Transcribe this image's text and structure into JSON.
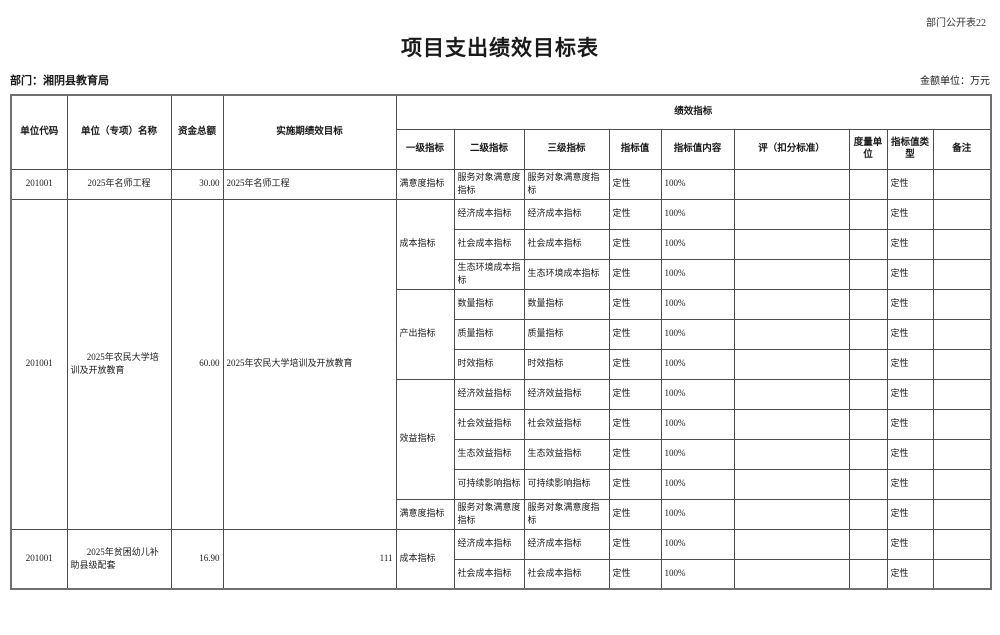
{
  "page": {
    "corner_label": "部门公开表22",
    "title": "项目支出绩效目标表",
    "department_label": "部门：湘阴县教育局",
    "amount_unit_label": "金额单位：万元"
  },
  "table": {
    "headers": {
      "unit_code": "单位代码",
      "unit_name": "单位（专项）名称",
      "total_funds": "资金总额",
      "impl_goal": "实施期绩效目标",
      "perf_indicators": "绩效指标",
      "l1": "一级指标",
      "l2": "二级指标",
      "l3": "三级指标",
      "value": "指标值",
      "value_content": "指标值内容",
      "eval": "评（扣分标准）",
      "measure_unit": "度量单位",
      "value_type": "指标值类型",
      "note": "备注"
    },
    "groups": [
      {
        "code": "201001",
        "name": "2025年名师工程",
        "amount": "30.00",
        "goal": "2025年名师工程",
        "rows": [
          {
            "l1": "满意度指标",
            "l2": "服务对象满意度指标",
            "l3": "服务对象满意度指标",
            "value": "定性",
            "content": "100%",
            "eval": "",
            "unit": "",
            "type": "定性",
            "note": ""
          }
        ]
      },
      {
        "code": "201001",
        "name": "2025年农民大学培训及开放教育",
        "amount": "60.00",
        "goal": "2025年农民大学培训及开放教育",
        "rows": [
          {
            "l1": "成本指标",
            "l2": "经济成本指标",
            "l3": "经济成本指标",
            "value": "定性",
            "content": "100%",
            "eval": "",
            "unit": "",
            "type": "定性",
            "note": ""
          },
          {
            "l2": "社会成本指标",
            "l3": "社会成本指标",
            "value": "定性",
            "content": "100%",
            "eval": "",
            "unit": "",
            "type": "定性",
            "note": ""
          },
          {
            "l2": "生态环境成本指标",
            "l3": "生态环境成本指标",
            "value": "定性",
            "content": "100%",
            "eval": "",
            "unit": "",
            "type": "定性",
            "note": ""
          },
          {
            "l1": "产出指标",
            "l2": "数量指标",
            "l3": "数量指标",
            "value": "定性",
            "content": "100%",
            "eval": "",
            "unit": "",
            "type": "定性",
            "note": ""
          },
          {
            "l2": "质量指标",
            "l3": "质量指标",
            "value": "定性",
            "content": "100%",
            "eval": "",
            "unit": "",
            "type": "定性",
            "note": ""
          },
          {
            "l2": "时效指标",
            "l3": "时效指标",
            "value": "定性",
            "content": "100%",
            "eval": "",
            "unit": "",
            "type": "定性",
            "note": ""
          },
          {
            "l1": "效益指标",
            "l2": "经济效益指标",
            "l3": "经济效益指标",
            "value": "定性",
            "content": "100%",
            "eval": "",
            "unit": "",
            "type": "定性",
            "note": ""
          },
          {
            "l2": "社会效益指标",
            "l3": "社会效益指标",
            "value": "定性",
            "content": "100%",
            "eval": "",
            "unit": "",
            "type": "定性",
            "note": ""
          },
          {
            "l2": "生态效益指标",
            "l3": "生态效益指标",
            "value": "定性",
            "content": "100%",
            "eval": "",
            "unit": "",
            "type": "定性",
            "note": ""
          },
          {
            "l2": "可持续影响指标",
            "l3": "可持续影响指标",
            "value": "定性",
            "content": "100%",
            "eval": "",
            "unit": "",
            "type": "定性",
            "note": ""
          },
          {
            "l1": "满意度指标",
            "l2": "服务对象满意度指标",
            "l3": "服务对象满意度指标",
            "value": "定性",
            "content": "100%",
            "eval": "",
            "unit": "",
            "type": "定性",
            "note": ""
          }
        ]
      },
      {
        "code": "201001",
        "name": "2025年贫困幼儿补助县级配套",
        "amount": "16.90",
        "goal": "111",
        "rows": [
          {
            "l1": "成本指标",
            "l2": "经济成本指标",
            "l3": "经济成本指标",
            "value": "定性",
            "content": "100%",
            "eval": "",
            "unit": "",
            "type": "定性",
            "note": ""
          },
          {
            "l2": "社会成本指标",
            "l3": "社会成本指标",
            "value": "定性",
            "content": "100%",
            "eval": "",
            "unit": "",
            "type": "定性",
            "note": ""
          }
        ]
      }
    ]
  }
}
